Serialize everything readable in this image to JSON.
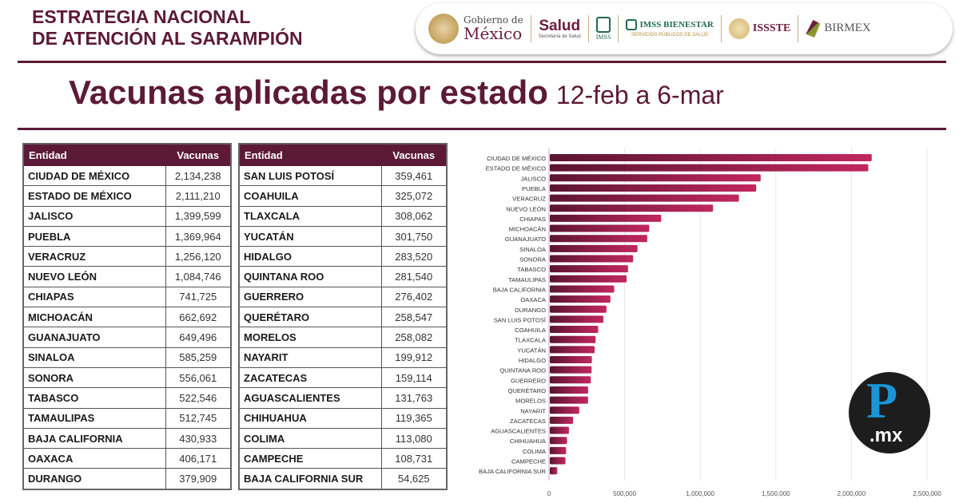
{
  "header": {
    "title_line1": "ESTRATEGIA NACIONAL",
    "title_line2": "DE ATENCIÓN AL SARAMPIÓN",
    "logos": {
      "gobierno_small": "Gobierno de",
      "gobierno_big": "México",
      "salud": "Salud",
      "salud_sub": "Secretaría de Salud",
      "imss": "IMSS",
      "imss_bienestar": "IMSS BIENESTAR",
      "imss_bienestar_sub": "SERVICIOS PÚBLICOS DE SALUD",
      "issste": "ISSSTE",
      "birmex": "BIRMEX"
    }
  },
  "main": {
    "title": "Vacunas aplicadas por estado",
    "date_range": "12-feb a 6-mar"
  },
  "tables": {
    "headers": {
      "entity": "Entidad",
      "vaccines": "Vacunas"
    },
    "left": [
      {
        "name": "CIUDAD DE MÉXICO",
        "value": "2,134,238"
      },
      {
        "name": "ESTADO DE MÉXICO",
        "value": "2,111,210"
      },
      {
        "name": "JALISCO",
        "value": "1,399,599"
      },
      {
        "name": "PUEBLA",
        "value": "1,369,964"
      },
      {
        "name": "VERACRUZ",
        "value": "1,256,120"
      },
      {
        "name": "NUEVO LEÓN",
        "value": "1,084,746"
      },
      {
        "name": "CHIAPAS",
        "value": "741,725"
      },
      {
        "name": "MICHOACÁN",
        "value": "662,692"
      },
      {
        "name": "GUANAJUATO",
        "value": "649,496"
      },
      {
        "name": "SINALOA",
        "value": "585,259"
      },
      {
        "name": "SONORA",
        "value": "556,061"
      },
      {
        "name": "TABASCO",
        "value": "522,546"
      },
      {
        "name": "TAMAULIPAS",
        "value": "512,745"
      },
      {
        "name": "BAJA CALIFORNIA",
        "value": "430,933"
      },
      {
        "name": "OAXACA",
        "value": "406,171"
      },
      {
        "name": "DURANGO",
        "value": "379,909"
      }
    ],
    "right": [
      {
        "name": "SAN LUIS POTOSÍ",
        "value": "359,461"
      },
      {
        "name": "COAHUILA",
        "value": "325,072"
      },
      {
        "name": "TLAXCALA",
        "value": "308,062"
      },
      {
        "name": "YUCATÁN",
        "value": "301,750"
      },
      {
        "name": "HIDALGO",
        "value": "283,520"
      },
      {
        "name": "QUINTANA ROO",
        "value": "281,540"
      },
      {
        "name": "GUERRERO",
        "value": "276,402"
      },
      {
        "name": "QUERÉTARO",
        "value": "258,547"
      },
      {
        "name": "MORELOS",
        "value": "258,082"
      },
      {
        "name": "NAYARIT",
        "value": "199,912"
      },
      {
        "name": "ZACATECAS",
        "value": "159,114"
      },
      {
        "name": "AGUASCALIENTES",
        "value": "131,763"
      },
      {
        "name": "CHIHUAHUA",
        "value": "119,365"
      },
      {
        "name": "COLIMA",
        "value": "113,080"
      },
      {
        "name": "CAMPECHE",
        "value": "108,731"
      },
      {
        "name": "BAJA CALIFORNIA SUR",
        "value": "54,625"
      }
    ]
  },
  "watermark": {
    "letter": "P",
    "suffix": ".mx"
  },
  "colors": {
    "brand": "#5c1a36",
    "bar_start": "#5a1530",
    "bar_end": "#c2275f",
    "grid": "#e6e6e6"
  },
  "chart_data": {
    "type": "bar",
    "orientation": "horizontal",
    "title": "Vacunas aplicadas por estado",
    "xlabel": "",
    "ylabel": "",
    "xlim": [
      0,
      2500000
    ],
    "grid": true,
    "x_ticks": [
      0,
      500000,
      1000000,
      1500000,
      2000000,
      2500000
    ],
    "x_tick_labels": [
      "0",
      "500,000",
      "1,000,000",
      "1,500,000",
      "2,000,000",
      "2,500,000"
    ],
    "categories": [
      "CIUDAD DE MÉXICO",
      "ESTADO DE MÉXICO",
      "JALISCO",
      "PUEBLA",
      "VERACRUZ",
      "NUEVO LEÓN",
      "CHIAPAS",
      "MICHOACÁN",
      "GUANAJUATO",
      "SINALOA",
      "SONORA",
      "TABASCO",
      "TAMAULIPAS",
      "BAJA CALIFORNIA",
      "OAXACA",
      "DURANGO",
      "SAN LUIS POTOSÍ",
      "COAHUILA",
      "TLAXCALA",
      "YUCATÁN",
      "HIDALGO",
      "QUINTANA ROO",
      "GUERRERO",
      "QUERÉTARO",
      "MORELOS",
      "NAYARIT",
      "ZACATECAS",
      "AGUASCALIENTES",
      "CHIHUAHUA",
      "COLIMA",
      "CAMPECHE",
      "BAJA CALIFORNIA SUR"
    ],
    "values": [
      2134238,
      2111210,
      1399599,
      1369964,
      1256120,
      1084746,
      741725,
      662692,
      649496,
      585259,
      556061,
      522546,
      512745,
      430933,
      406171,
      379909,
      359461,
      325072,
      308062,
      301750,
      283520,
      281540,
      276402,
      258547,
      258082,
      199912,
      159114,
      131763,
      119365,
      113080,
      108731,
      54625
    ]
  }
}
